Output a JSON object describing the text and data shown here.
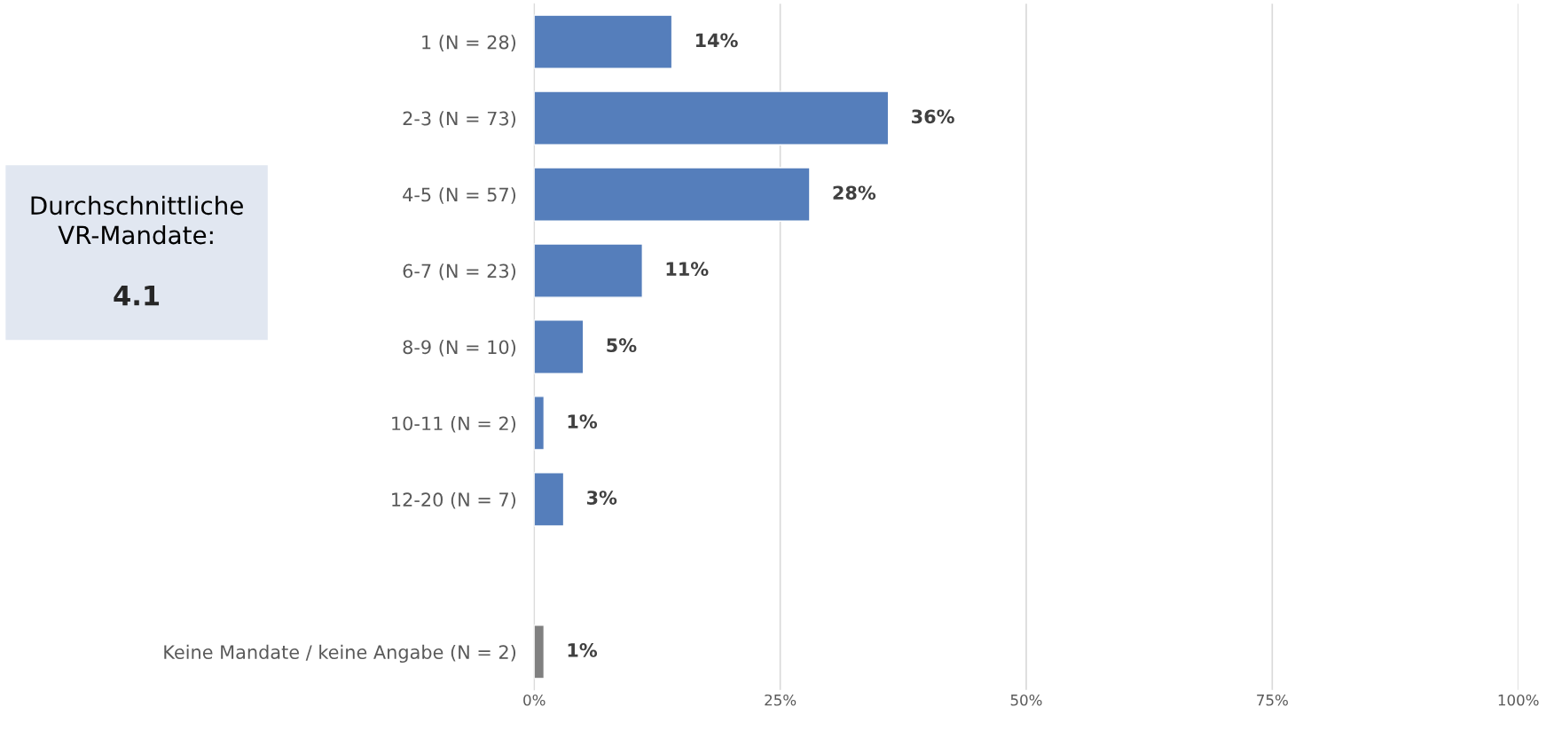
{
  "chart_data": {
    "type": "bar",
    "orientation": "horizontal",
    "categories": [
      "1 (N = 28)",
      "2-3 (N = 73)",
      "4-5 (N = 57)",
      "6-7 (N = 23)",
      "8-9 (N = 10)",
      "10-11 (N = 2)",
      "12-20 (N = 7)",
      null,
      "Keine Mandate / keine Angabe (N = 2)"
    ],
    "values": [
      14,
      36,
      28,
      11,
      5,
      1,
      3,
      null,
      1
    ],
    "colors": [
      "#557ebb",
      "#557ebb",
      "#557ebb",
      "#557ebb",
      "#557ebb",
      "#557ebb",
      "#557ebb",
      "#557ebb",
      "#808080"
    ],
    "value_labels": [
      "14%",
      "36%",
      "28%",
      "11%",
      "5%",
      "1%",
      "3%",
      null,
      "1%"
    ],
    "xlim": [
      0,
      100
    ],
    "xticks": [
      {
        "value": 0,
        "label": "0%"
      },
      {
        "value": 25,
        "label": "25%"
      },
      {
        "value": 50,
        "label": "50%"
      },
      {
        "value": 75,
        "label": "75%"
      },
      {
        "value": 100,
        "label": "100%"
      }
    ],
    "grid": "x",
    "annotations": [
      "Durchschnittliche\nVR-Mandate:",
      "4.1"
    ]
  }
}
